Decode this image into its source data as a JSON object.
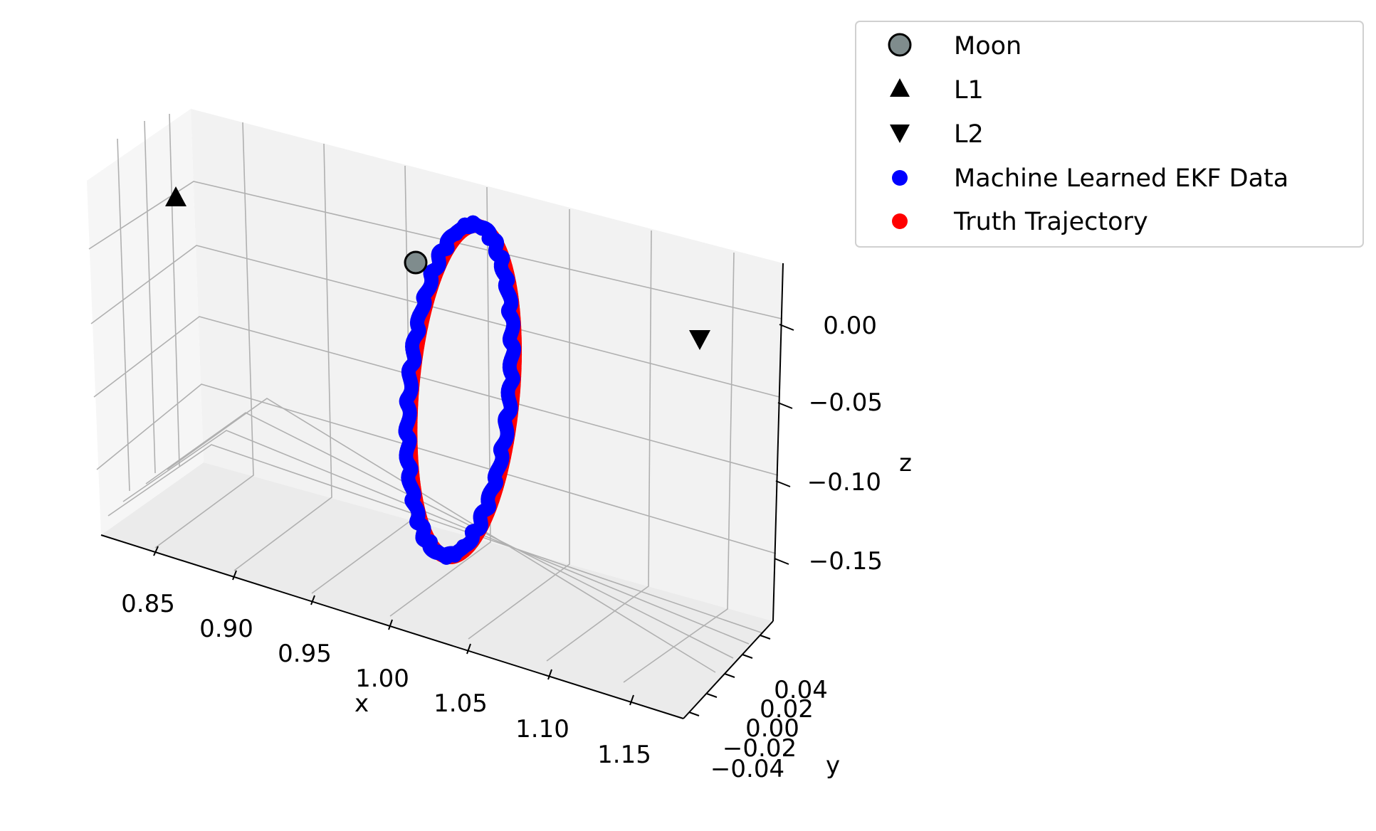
{
  "chart_data": {
    "type": "scatter",
    "projection": "3d",
    "title": "",
    "xlabel": "x",
    "ylabel": "y",
    "zlabel": "z",
    "xlim": [
      0.82,
      1.18
    ],
    "ylim": [
      -0.05,
      0.05
    ],
    "zlim": [
      -0.19,
      0.04
    ],
    "x_ticks": [
      "0.85",
      "0.90",
      "0.95",
      "1.00",
      "1.05",
      "1.10",
      "1.15"
    ],
    "y_ticks": [
      "−0.04",
      "−0.02",
      "0.00",
      "0.02",
      "0.04"
    ],
    "z_ticks": [
      "−0.15",
      "−0.10",
      "−0.05",
      "0.00"
    ],
    "grid": true,
    "legend_position": "upper-right outside",
    "colors": {
      "moon": "#7f8c8d",
      "ekf": "#0000ff",
      "truth": "#ff0000",
      "markers": "#000000",
      "grid": "#b0b0b0",
      "pane": "#f2f2f2"
    },
    "series": [
      {
        "name": "Moon",
        "marker": "circle",
        "points": [
          {
            "x": 0.9878,
            "y": 0.0,
            "z": 0.0
          }
        ]
      },
      {
        "name": "L1",
        "marker": "triangle-up",
        "points": [
          {
            "x": 0.8369,
            "y": 0.0,
            "z": 0.0
          }
        ]
      },
      {
        "name": "L2",
        "marker": "triangle-down",
        "points": [
          {
            "x": 1.1557,
            "y": 0.0,
            "z": 0.0
          }
        ]
      },
      {
        "name": "Machine Learned EKF Data",
        "marker": "dot"
      },
      {
        "name": "Truth Trajectory",
        "marker": "dot"
      }
    ],
    "orbit": {
      "type": "halo",
      "x_range": [
        0.98,
        1.04
      ],
      "z_range": [
        -0.18,
        0.035
      ],
      "y_range": [
        -0.03,
        0.03
      ]
    }
  }
}
